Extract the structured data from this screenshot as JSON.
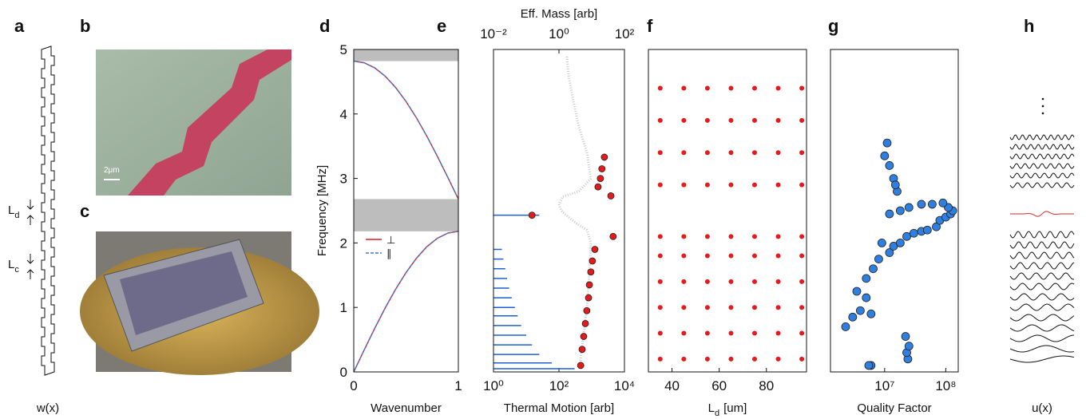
{
  "panel_labels": [
    "a",
    "b",
    "c",
    "d",
    "e",
    "f",
    "g",
    "h"
  ],
  "panel_a": {
    "label": "w(x)",
    "annotations": [
      {
        "main": "L",
        "sub": "d"
      },
      {
        "main": "L",
        "sub": "c"
      }
    ]
  },
  "panel_b": {
    "scale_bar": "2μm"
  },
  "panel_h": {
    "label": "u(x)"
  },
  "chart_data": [
    {
      "type": "line",
      "xlabel": "Wavenumber",
      "ylabel": "Frequency [MHz]",
      "xlim": [
        0,
        1
      ],
      "ylim": [
        0,
        5
      ],
      "xticks": [
        0,
        1
      ],
      "yticks": [
        0,
        1,
        2,
        3,
        4,
        5
      ],
      "bands": [
        [
          2.18,
          2.68
        ],
        [
          4.82,
          5
        ]
      ],
      "band_color": "#bdbdbd",
      "legend": "left",
      "series": [
        {
          "name": "⊥",
          "color": "#e41a1c",
          "x": [
            0,
            0.1,
            0.2,
            0.3,
            0.4,
            0.5,
            0.6,
            0.7,
            0.8,
            0.9,
            1,
            null,
            0,
            0.1,
            0.2,
            0.3,
            0.4,
            0.5,
            0.6,
            0.7,
            0.8,
            0.9,
            1
          ],
          "values": [
            0,
            0.341,
            0.674,
            0.99,
            1.281,
            1.541,
            1.764,
            1.944,
            2.073,
            2.153,
            2.18,
            null,
            4.82,
            4.794,
            4.715,
            4.587,
            4.411,
            4.193,
            3.938,
            3.652,
            3.341,
            3.014,
            2.68
          ]
        },
        {
          "name": "∥",
          "color": "#3a7bd5",
          "dash": true,
          "x": [
            0,
            0.1,
            0.2,
            0.3,
            0.4,
            0.5,
            0.6,
            0.7,
            0.8,
            0.9,
            1,
            null,
            0,
            0.1,
            0.2,
            0.3,
            0.4,
            0.5,
            0.6,
            0.7,
            0.8,
            0.9,
            1
          ],
          "values": [
            0,
            0.341,
            0.674,
            0.99,
            1.281,
            1.541,
            1.764,
            1.944,
            2.073,
            2.153,
            2.18,
            null,
            4.82,
            4.794,
            4.715,
            4.587,
            4.411,
            4.193,
            3.938,
            3.652,
            3.341,
            3.014,
            2.68
          ]
        }
      ]
    },
    {
      "type": "scatter",
      "xlabel": "Thermal Motion [arb]",
      "x2label": "Eff. Mass [arb]",
      "xscale": "log",
      "xlim": [
        1,
        10000
      ],
      "xticks": [
        {
          "value": 1,
          "label": "10⁰"
        },
        {
          "value": 100,
          "label": "10²"
        },
        {
          "value": 10000,
          "label": "10⁴"
        }
      ],
      "x2lim": [
        0.01,
        100
      ],
      "x2ticks": [
        {
          "value": 0.01,
          "label": "10⁻²"
        },
        {
          "value": 1,
          "label": "10⁰"
        },
        {
          "value": 100,
          "label": "10²"
        }
      ],
      "ylim": [
        0,
        5
      ],
      "series": [
        {
          "color": "#1f5fd6",
          "style": "stem",
          "x": [
            300,
            60,
            25,
            15,
            10,
            7,
            5.5,
            4.5,
            3.6,
            3,
            2.6,
            2.3,
            2,
            1.8,
            25
          ],
          "values": [
            0.05,
            0.14,
            0.27,
            0.42,
            0.57,
            0.72,
            0.87,
            1.0,
            1.15,
            1.3,
            1.45,
            1.6,
            1.75,
            1.9,
            2.43
          ]
        },
        {
          "color": "#c8c8c8",
          "style": "line",
          "axis": "x2",
          "x": [
            4.35,
            5.4,
            7.14,
            8.3,
            9.46,
            7.14,
            3.45,
            1.96,
            1.18,
            1.0,
            1.32,
            4.07,
            9.46,
            7.14,
            4.07,
            2.75,
            1.96,
            1.75
          ],
          "values": [
            0.1,
            0.5,
            1.0,
            1.5,
            2.0,
            2.2,
            2.3,
            2.4,
            2.5,
            2.6,
            2.72,
            2.8,
            3.0,
            3.4,
            3.8,
            4.2,
            4.6,
            4.9
          ]
        },
        {
          "color": "#e41a1c",
          "axis": "x2",
          "x": [
            4.6,
            5.1,
            5.7,
            6.4,
            7.1,
            8.0,
            8.5,
            9.4,
            10.5,
            12.5,
            45,
            0.15,
            38.6,
            15.6,
            18.4,
            20.5,
            24.4
          ],
          "values": [
            0.1,
            0.35,
            0.55,
            0.75,
            0.95,
            1.15,
            1.35,
            1.55,
            1.72,
            1.9,
            2.1,
            2.43,
            2.73,
            2.87,
            3.0,
            3.15,
            3.33
          ]
        }
      ]
    },
    {
      "type": "scatter",
      "xlabel": [
        "L",
        "d",
        "[um]"
      ],
      "xlim": [
        30,
        97
      ],
      "xticks": [
        40,
        60,
        80
      ],
      "ylim": [
        0,
        5
      ],
      "series": [
        {
          "color": "#e41a1c",
          "size": 3,
          "x": [
            35,
            45,
            55,
            65,
            75,
            85,
            95,
            35,
            45,
            55,
            65,
            75,
            85,
            95,
            35,
            45,
            55,
            65,
            75,
            85,
            95,
            35,
            45,
            55,
            65,
            75,
            85,
            95,
            35,
            45,
            55,
            65,
            75,
            85,
            95,
            35,
            45,
            55,
            65,
            75,
            85,
            95,
            35,
            45,
            55,
            65,
            75,
            85,
            95,
            35,
            45,
            55,
            65,
            75,
            85,
            95,
            35,
            45,
            55,
            65,
            75,
            85,
            95,
            35,
            45,
            55,
            65,
            75,
            85,
            95
          ],
          "values": [
            0.2,
            0.2,
            0.2,
            0.2,
            0.2,
            0.2,
            0.2,
            0.6,
            0.6,
            0.6,
            0.6,
            0.6,
            0.6,
            0.6,
            1.0,
            1.0,
            1.0,
            1.0,
            1.0,
            1.0,
            1.0,
            1.4,
            1.4,
            1.4,
            1.4,
            1.4,
            1.4,
            1.4,
            1.8,
            1.8,
            1.8,
            1.8,
            1.8,
            1.8,
            1.8,
            2.1,
            2.1,
            2.1,
            2.1,
            2.1,
            2.1,
            2.1,
            2.9,
            2.9,
            2.9,
            2.9,
            2.9,
            2.9,
            2.9,
            3.4,
            3.4,
            3.4,
            3.4,
            3.4,
            3.4,
            3.4,
            3.9,
            3.9,
            3.9,
            3.9,
            3.9,
            3.9,
            3.9,
            4.4,
            4.4,
            4.4,
            4.4,
            4.4,
            4.4,
            4.4
          ]
        }
      ]
    },
    {
      "type": "scatter",
      "xlabel": "Quality Factor",
      "xscale": "log",
      "xlim": [
        1300000,
        160000000
      ],
      "xticks": [
        {
          "value": 10000000,
          "label": "10⁷"
        },
        {
          "value": 100000000,
          "label": "10⁸"
        }
      ],
      "ylim": [
        0,
        5
      ],
      "series": [
        {
          "color": "#2f7fe0",
          "size": 5,
          "x": [
            2300000,
            3000000,
            4000000,
            5000000,
            6000000,
            3500000,
            5000000,
            6500000,
            8000000,
            12000000,
            9000000,
            14000000,
            18000000,
            23000000,
            30000000,
            40000000,
            50000000,
            70000000,
            80000000,
            100000000,
            120000000,
            130000000,
            110000000,
            90000000,
            60000000,
            40000000,
            25000000,
            18000000,
            12000000,
            16000000,
            14000000,
            12000000,
            10000000,
            11000000,
            15000000,
            24000000,
            23000000,
            25000000,
            22000000,
            6000000,
            5500000
          ],
          "values": [
            0.7,
            0.85,
            0.95,
            1.15,
            0.9,
            1.25,
            1.45,
            1.6,
            1.75,
            1.85,
            2.0,
            1.95,
            2.0,
            2.1,
            2.15,
            2.18,
            2.2,
            2.25,
            2.35,
            2.4,
            2.45,
            2.5,
            2.55,
            2.62,
            2.6,
            2.6,
            2.55,
            2.5,
            2.45,
            2.8,
            3.0,
            3.2,
            3.35,
            3.55,
            2.9,
            0.2,
            0.3,
            0.4,
            0.55,
            0.1,
            0.1
          ]
        }
      ]
    }
  ]
}
